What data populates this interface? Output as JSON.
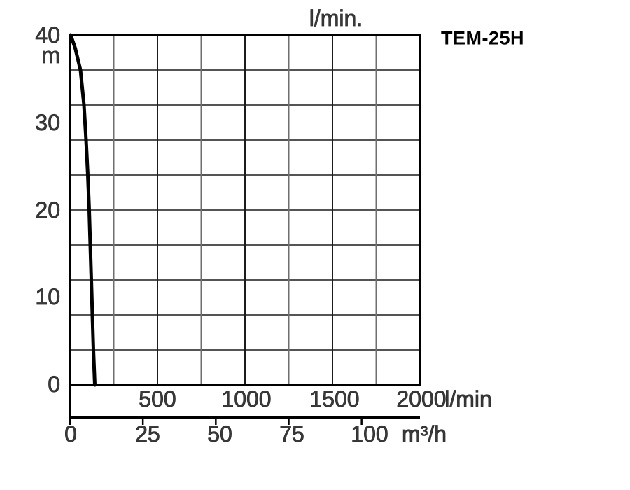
{
  "title": "TEM-25H",
  "colors": {
    "background": "#ffffff",
    "border": "#000000",
    "grid_major": "#1c1c1c",
    "grid_minor": "#6f6f6f",
    "curve": "#000000",
    "label_text": "#3a3a3a",
    "title_text": "#000000"
  },
  "chart_data": {
    "type": "line",
    "title": "TEM-25H",
    "top_axis_unit": "l/min.",
    "y_axis": {
      "unit": "m",
      "min": 0,
      "max": 40,
      "ticks": [
        "40",
        "30",
        "20",
        "10",
        "0"
      ],
      "gridline_step": 4
    },
    "x_axis_lmin": {
      "unit": "l/min",
      "min": 0,
      "max": 2000,
      "ticks": [
        "500",
        "1000",
        "1500",
        "2000"
      ],
      "gridline_step": 250
    },
    "x_axis_m3h": {
      "unit": "m³/h",
      "min": 0,
      "max": 100,
      "ticks": [
        "0",
        "25",
        "50",
        "75",
        "100"
      ],
      "tick_step": 25
    },
    "series": [
      {
        "name": "TEM-25H head-flow curve",
        "x_unit": "l/min",
        "y_unit": "m",
        "points": [
          [
            4,
            40
          ],
          [
            30,
            38.5
          ],
          [
            60,
            36
          ],
          [
            80,
            32
          ],
          [
            92,
            28
          ],
          [
            102,
            24
          ],
          [
            110,
            20
          ],
          [
            116,
            16
          ],
          [
            122,
            12
          ],
          [
            128,
            8
          ],
          [
            134,
            4
          ],
          [
            142,
            0
          ]
        ]
      }
    ],
    "grid": true,
    "legend": false
  }
}
